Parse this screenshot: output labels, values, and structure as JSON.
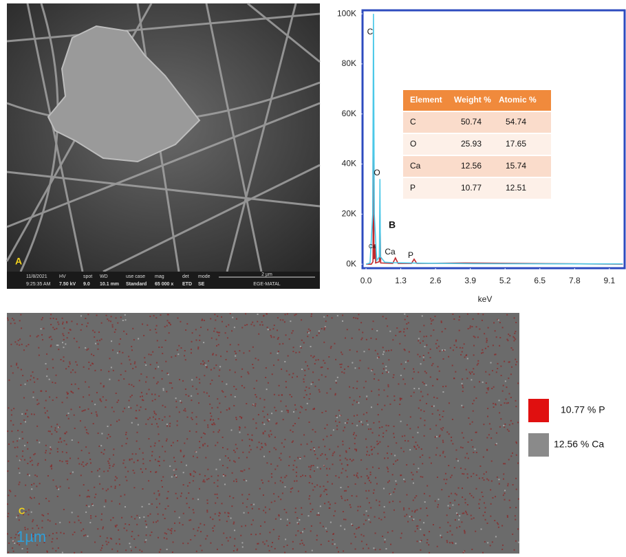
{
  "panel_a": {
    "label": "A",
    "info_bar": {
      "date": "11/8/2021",
      "time": "9:25:35 AM",
      "hv_label": "HV",
      "hv": "7.50 kV",
      "spot_label": "spot",
      "spot": "9.0",
      "wd_label": "WD",
      "wd": "10.1 mm",
      "use_case_label": "use case",
      "use_case": "Standard",
      "mag_label": "mag",
      "mag": "65 000 x",
      "det_label": "det",
      "det": "ETD",
      "mode_label": "mode",
      "mode": "SE",
      "scale": "2 µm",
      "lab": "EGE-MATAL"
    }
  },
  "chart_data": {
    "type": "line",
    "panel_label": "B",
    "x_label": "keV",
    "xlim": [
      -0.13,
      9.67
    ],
    "ylim": [
      -1600,
      101400
    ],
    "xticks": [
      {
        "value": 0,
        "label": "0.0"
      },
      1.3,
      2.6,
      3.9,
      5.2,
      6.5,
      7.8,
      9.1
    ],
    "yticks": [
      {
        "value": 0,
        "label": "0K"
      },
      {
        "value": 20000,
        "label": "20K"
      },
      {
        "value": 40000,
        "label": "40K"
      },
      {
        "value": 60000,
        "label": "60K"
      },
      {
        "value": 80000,
        "label": "80K"
      },
      {
        "value": 100000,
        "label": "100K"
      }
    ],
    "series": [
      {
        "color": "#c0282d",
        "x": [
          0,
          0.2,
          0.26,
          0.28,
          0.3,
          0.33,
          0.34,
          0.36,
          0.5,
          0.52,
          0.55,
          1.0,
          1.1,
          1.2,
          1.7,
          1.8,
          1.9,
          3.7,
          9.6
        ],
        "values": [
          0,
          0,
          1000,
          55000,
          2000,
          3000,
          8000,
          500,
          1000,
          20000,
          500,
          300,
          2500,
          300,
          300,
          2000,
          300,
          500,
          0
        ]
      },
      {
        "color": "#4bc8e8",
        "x": [
          0,
          0.15,
          0.25,
          0.28,
          0.31,
          0.4,
          0.5,
          0.52,
          0.54,
          0.7,
          1.0,
          2,
          3,
          4,
          9.6
        ],
        "values": [
          0,
          500,
          20000,
          100000,
          20000,
          1500,
          3000,
          34000,
          3000,
          800,
          600,
          400,
          300,
          200,
          100
        ]
      }
    ],
    "peak_labels": [
      "C",
      "O",
      "Ca",
      "Ca",
      "P"
    ],
    "table": {
      "header": [
        "Element",
        "Weight %",
        "Atomic %"
      ],
      "rows": [
        [
          "C",
          "50.74",
          "54.74"
        ],
        [
          "O",
          "25.93",
          "17.65"
        ],
        [
          "Ca",
          "12.56",
          "15.74"
        ],
        [
          "P",
          "10.77",
          "12.51"
        ]
      ]
    }
  },
  "panel_c": {
    "label": "C",
    "scale": "1µm",
    "legend": [
      "10.77 % P",
      "12.56 % Ca"
    ]
  }
}
